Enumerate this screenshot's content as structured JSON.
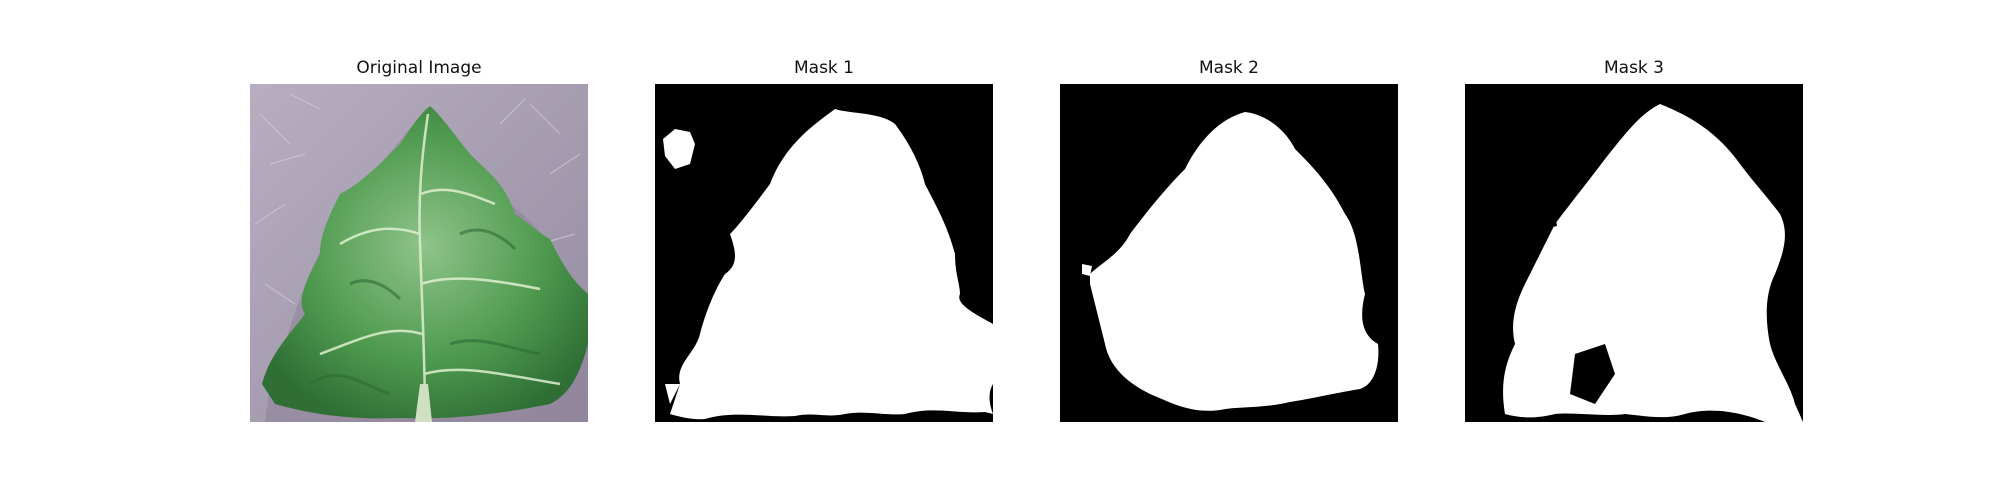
{
  "panels": [
    {
      "title": "Original Image",
      "kind": "photo",
      "colors": {
        "background": "#a9a0b3",
        "leaf": "#4f9a4f",
        "leaf_light": "#b9d9a8",
        "stem": "#cfe0c0"
      }
    },
    {
      "title": "Mask 1",
      "kind": "mask",
      "colors": {
        "background": "#000000",
        "foreground": "#ffffff"
      }
    },
    {
      "title": "Mask 2",
      "kind": "mask",
      "colors": {
        "background": "#000000",
        "foreground": "#ffffff"
      }
    },
    {
      "title": "Mask 3",
      "kind": "mask",
      "colors": {
        "background": "#000000",
        "foreground": "#ffffff"
      }
    }
  ]
}
